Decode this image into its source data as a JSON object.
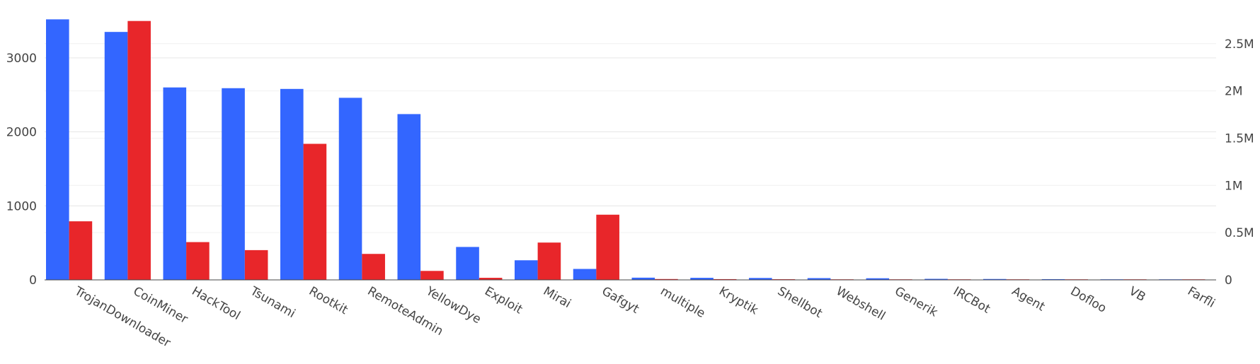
{
  "chart_data": {
    "type": "bar",
    "title": "",
    "xlabel": "",
    "ylabel": "",
    "categories": [
      "TrojanDownloader",
      "CoinMiner",
      "HackTool",
      "Tsunami",
      "Rootkit",
      "RemoteAdmin",
      "YellowDye",
      "Exploit",
      "Mirai",
      "Gafgyt",
      "multiple",
      "Kryptik",
      "Shellbot",
      "Webshell",
      "Generik",
      "IRCBot",
      "Agent",
      "Dofloo",
      "VB",
      "Farfli"
    ],
    "series": [
      {
        "axis": "left",
        "color": "#3366ff",
        "values": [
          3520,
          3350,
          2600,
          2590,
          2580,
          2460,
          2240,
          445,
          265,
          148,
          30,
          28,
          26,
          24,
          22,
          14,
          12,
          10,
          8,
          6
        ]
      },
      {
        "axis": "right",
        "color": "#e8262a",
        "values": [
          620000,
          2740000,
          400000,
          315000,
          1440000,
          275000,
          95000,
          22000,
          395000,
          690000,
          9000,
          8000,
          7000,
          6000,
          5000,
          5000,
          4000,
          4000,
          3000,
          5000
        ]
      }
    ],
    "y_left": {
      "range": [
        0,
        3600
      ],
      "ticks": [
        0,
        1000,
        2000,
        3000
      ],
      "tick_labels": [
        "0",
        "1000",
        "2000",
        "3000"
      ]
    },
    "y_right": {
      "range": [
        0,
        2820000
      ],
      "ticks": [
        0,
        500000,
        1000000,
        1500000,
        2000000,
        2500000
      ],
      "tick_labels": [
        "0",
        "0.5M",
        "1M",
        "1.5M",
        "2M",
        "2.5M"
      ]
    },
    "grid": true,
    "legend": "none"
  }
}
